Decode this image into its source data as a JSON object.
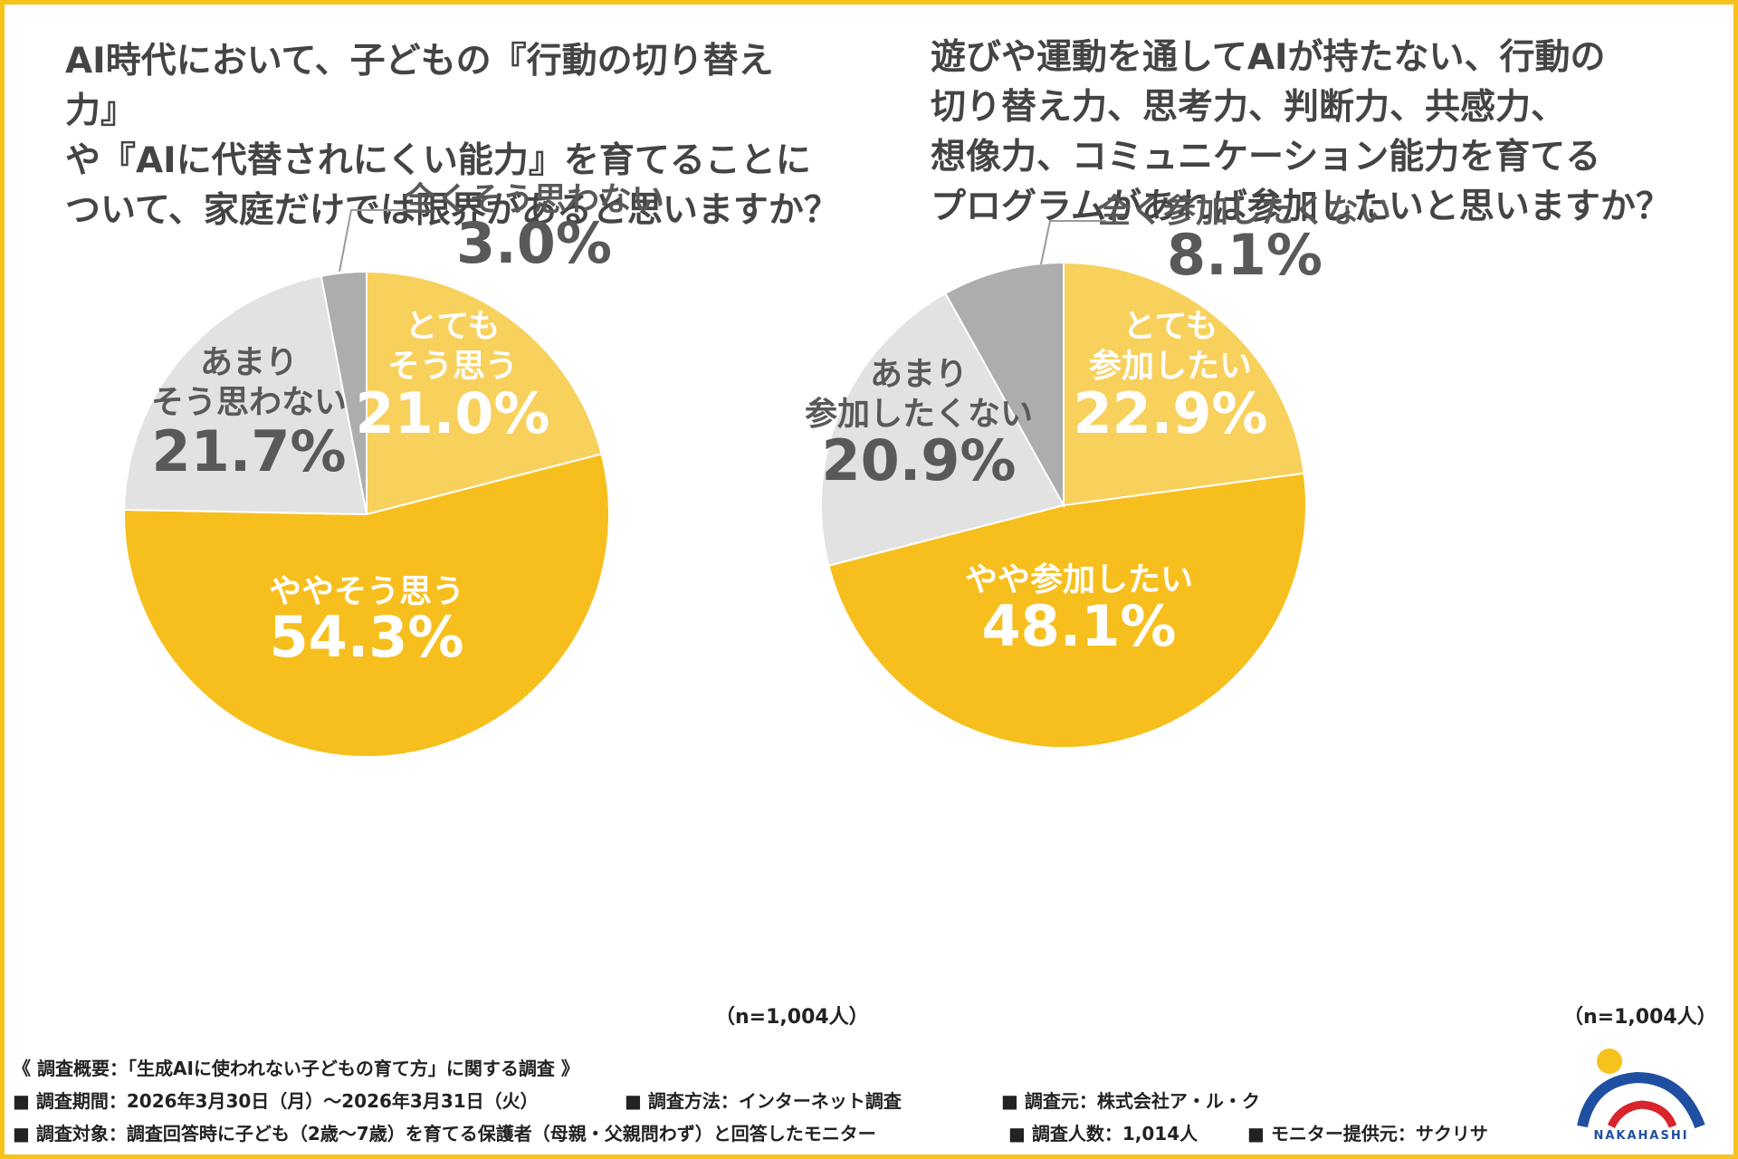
{
  "titles": {
    "left": "AI時代において、子どもの『行動の切り替え力』\nや『AIに代替されにくい能力』を育てることに\nついて、家庭だけでは限界があると思いますか？",
    "right": "遊びや運動を通してAIが持たない、行動の\n切り替え力、思考力、判断力、共感力、\n想像力、コミュニケーション能力を育てる\nプログラムがあれば参加したいと思いますか？"
  },
  "colors": {
    "frame": "#f7c21b",
    "slice_very": "#f8d05c",
    "slice_somewhat": "#f7bf1e",
    "slice_not_really": "#e2e2e2",
    "slice_not_at_all": "#adadad",
    "label_light": "#ffffff",
    "label_dark": "#595959"
  },
  "chart_data": [
    {
      "type": "pie",
      "title": "AI時代において、子どもの『行動の切り替え力』や『AIに代替されにくい能力』を育てることについて、家庭だけでは限界があると思いますか？",
      "n_label": "（n=1,004人）",
      "slices": [
        {
          "label": "とても\nそう思う",
          "value": 21.0,
          "value_label": "21.0%"
        },
        {
          "label": "ややそう思う",
          "value": 54.3,
          "value_label": "54.3%"
        },
        {
          "label": "あまり\nそう思わない",
          "value": 21.7,
          "value_label": "21.7%"
        },
        {
          "label": "全くそう思わない",
          "value": 3.0,
          "value_label": "3.0%"
        }
      ]
    },
    {
      "type": "pie",
      "title": "遊びや運動を通してAIが持たない、行動の切り替え力、思考力、判断力、共感力、想像力、コミュニケーション能力を育てるプログラムがあれば参加したいと思いますか？",
      "n_label": "（n=1,004人）",
      "slices": [
        {
          "label": "とても\n参加したい",
          "value": 22.9,
          "value_label": "22.9%"
        },
        {
          "label": "やや参加したい",
          "value": 48.1,
          "value_label": "48.1%"
        },
        {
          "label": "あまり\n参加したくない",
          "value": 20.9,
          "value_label": "20.9%"
        },
        {
          "label": "全く参加したくない",
          "value": 8.1,
          "value_label": "8.1%"
        }
      ]
    }
  ],
  "survey": {
    "heading": "《 調査概要：「生成AIに使われない子どもの育て方」に関する調査 》",
    "period": "■ 調査期間：2026年3月30日（月）～2026年3月31日（火）",
    "method": "■ 調査方法：インターネット調査",
    "source": "■ 調査元：株式会社ア・ル・ク",
    "target": "■ 調査対象：調査回答時に子ども（2歳～7歳）を育てる保護者（母親・父親問わず）と回答したモニター",
    "count": "■ 調査人数：1,014人",
    "provider": "■ モニター提供元：サクリサ"
  },
  "logo": {
    "text": "NAKAHASHI"
  }
}
